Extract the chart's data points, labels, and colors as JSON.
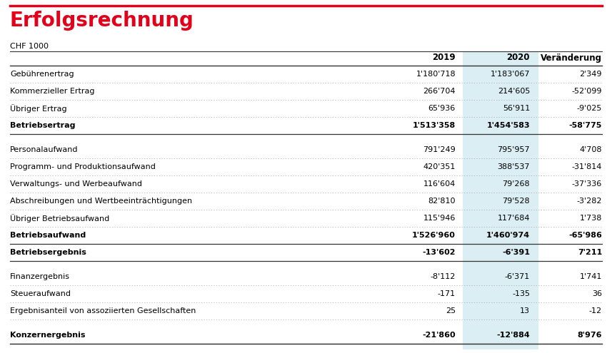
{
  "title": "Erfolgsrechnung",
  "subtitle": "CHF 1000",
  "rows": [
    {
      "label": "Gebührenertrag",
      "v2019": "1'180'718",
      "v2020": "1'183'067",
      "vchange": "2'349",
      "bold": false,
      "separator_after": "dotted",
      "blank_before": false
    },
    {
      "label": "Kommerzieller Ertrag",
      "v2019": "266'704",
      "v2020": "214'605",
      "vchange": "-52'099",
      "bold": false,
      "separator_after": "dotted",
      "blank_before": false
    },
    {
      "label": "Übriger Ertrag",
      "v2019": "65'936",
      "v2020": "56'911",
      "vchange": "-9'025",
      "bold": false,
      "separator_after": "dotted",
      "blank_before": false
    },
    {
      "label": "Betriebsertrag",
      "v2019": "1'513'358",
      "v2020": "1'454'583",
      "vchange": "-58'775",
      "bold": true,
      "separator_after": "solid",
      "blank_before": false
    },
    {
      "label": "Personalaufwand",
      "v2019": "791'249",
      "v2020": "795'957",
      "vchange": "4'708",
      "bold": false,
      "separator_after": "dotted",
      "blank_before": true
    },
    {
      "label": "Programm- und Produktionsaufwand",
      "v2019": "420'351",
      "v2020": "388'537",
      "vchange": "-31'814",
      "bold": false,
      "separator_after": "dotted",
      "blank_before": false
    },
    {
      "label": "Verwaltungs- und Werbeaufwand",
      "v2019": "116'604",
      "v2020": "79'268",
      "vchange": "-37'336",
      "bold": false,
      "separator_after": "dotted",
      "blank_before": false
    },
    {
      "label": "Abschreibungen und Wertbeeinträchtigungen",
      "v2019": "82'810",
      "v2020": "79'528",
      "vchange": "-3'282",
      "bold": false,
      "separator_after": "dotted",
      "blank_before": false
    },
    {
      "label": "Übriger Betriebsaufwand",
      "v2019": "115'946",
      "v2020": "117'684",
      "vchange": "1'738",
      "bold": false,
      "separator_after": "dotted",
      "blank_before": false
    },
    {
      "label": "Betriebsaufwand",
      "v2019": "1'526'960",
      "v2020": "1'460'974",
      "vchange": "-65'986",
      "bold": true,
      "separator_after": "solid",
      "blank_before": false
    },
    {
      "label": "Betriebsergebnis",
      "v2019": "-13'602",
      "v2020": "-6'391",
      "vchange": "7'211",
      "bold": true,
      "separator_after": "solid",
      "blank_before": false
    },
    {
      "label": "Finanzergebnis",
      "v2019": "-8'112",
      "v2020": "-6'371",
      "vchange": "1'741",
      "bold": false,
      "separator_after": "dotted",
      "blank_before": true
    },
    {
      "label": "Steueraufwand",
      "v2019": "-171",
      "v2020": "-135",
      "vchange": "36",
      "bold": false,
      "separator_after": "dotted",
      "blank_before": false
    },
    {
      "label": "Ergebnisanteil von assoziierten Gesellschaften",
      "v2019": "25",
      "v2020": "13",
      "vchange": "-12",
      "bold": false,
      "separator_after": "dotted",
      "blank_before": false
    },
    {
      "label": "Konzernergebnis",
      "v2019": "-21'860",
      "v2020": "-12'884",
      "vchange": "8'976",
      "bold": true,
      "separator_after": "solid",
      "blank_before": true
    }
  ],
  "title_color": "#e2001a",
  "separator_dotted_color": "#aaaaaa",
  "separator_solid_color": "#333333",
  "highlight_col_color": "#daeef3",
  "background_color": "#ffffff",
  "text_color": "#000000",
  "title_fontsize": 20,
  "label_fontsize": 8,
  "value_fontsize": 8,
  "header_fontsize": 8.5
}
